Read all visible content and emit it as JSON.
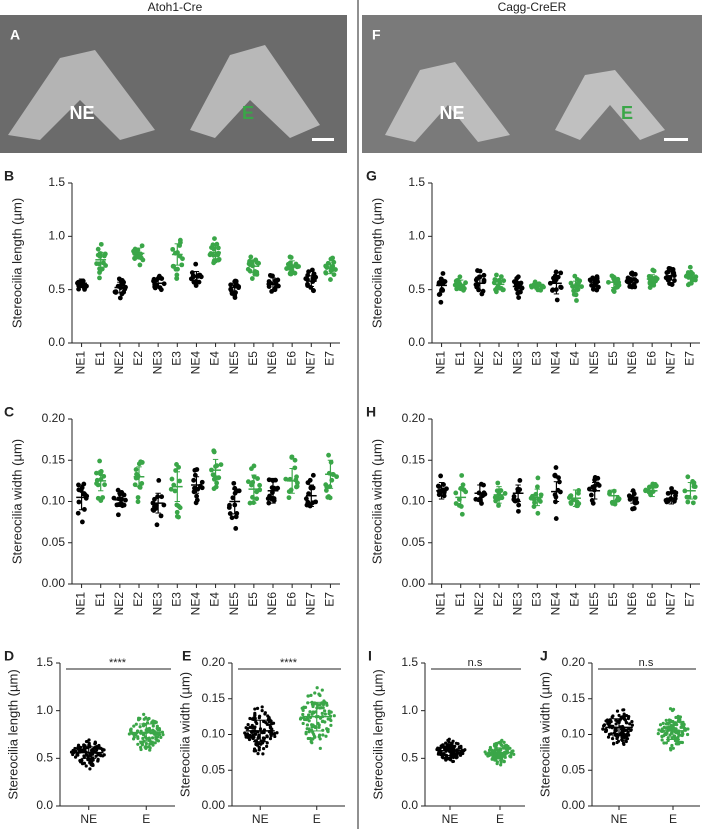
{
  "headers": [
    "Atoh1-Cre",
    "Cagg-CreER"
  ],
  "images": [
    {
      "letter": "A",
      "labels": [
        "NE",
        "E"
      ]
    },
    {
      "letter": "F",
      "labels": [
        "NE",
        "E"
      ]
    }
  ],
  "chart_data": [
    {
      "type": "dot",
      "panel": "B",
      "ylabel": "Stereocilia length (µm)",
      "categories": [
        "NE1",
        "E1",
        "NE2",
        "E2",
        "NE3",
        "E3",
        "NE4",
        "E4",
        "NE5",
        "E5",
        "NE6",
        "E6",
        "NE7",
        "E7"
      ],
      "values": [
        0.56,
        0.78,
        0.52,
        0.84,
        0.56,
        0.83,
        0.62,
        0.85,
        0.52,
        0.72,
        0.55,
        0.72,
        0.58,
        0.7
      ],
      "errors": [
        0.04,
        0.07,
        0.05,
        0.05,
        0.04,
        0.1,
        0.05,
        0.06,
        0.04,
        0.06,
        0.06,
        0.05,
        0.05,
        0.05
      ],
      "colors": [
        "#000000",
        "#3aa648",
        "#000000",
        "#3aa648",
        "#000000",
        "#3aa648",
        "#000000",
        "#3aa648",
        "#000000",
        "#3aa648",
        "#000000",
        "#3aa648",
        "#000000",
        "#3aa648"
      ],
      "ylim": [
        0,
        1.5
      ],
      "yticks": [
        {
          "value": 0,
          "label": "0.0"
        },
        {
          "value": 0.5,
          "label": "0.5"
        },
        {
          "value": 1,
          "label": "1.0"
        },
        {
          "value": 1.5,
          "label": "1.5"
        }
      ]
    },
    {
      "type": "dot",
      "panel": "C",
      "ylabel": "Stereocilia width (µm)",
      "categories": [
        "NE1",
        "E1",
        "NE2",
        "E2",
        "NE3",
        "E3",
        "NE4",
        "E4",
        "NE5",
        "E5",
        "NE6",
        "E6",
        "NE7",
        "E7"
      ],
      "values": [
        0.105,
        0.125,
        0.102,
        0.13,
        0.098,
        0.118,
        0.12,
        0.138,
        0.1,
        0.115,
        0.113,
        0.125,
        0.107,
        0.133
      ],
      "errors": [
        0.015,
        0.012,
        0.008,
        0.012,
        0.012,
        0.018,
        0.01,
        0.013,
        0.015,
        0.017,
        0.015,
        0.015,
        0.013,
        0.017
      ],
      "colors": [
        "#000000",
        "#3aa648",
        "#000000",
        "#3aa648",
        "#000000",
        "#3aa648",
        "#000000",
        "#3aa648",
        "#000000",
        "#3aa648",
        "#000000",
        "#3aa648",
        "#000000",
        "#3aa648"
      ],
      "ylim": [
        0,
        0.2
      ],
      "yticks": [
        {
          "value": 0,
          "label": "0.00"
        },
        {
          "value": 0.05,
          "label": "0.05"
        },
        {
          "value": 0.1,
          "label": "0.10"
        },
        {
          "value": 0.15,
          "label": "0.15"
        },
        {
          "value": 0.2,
          "label": "0.20"
        }
      ]
    },
    {
      "type": "dot",
      "panel": "G",
      "ylabel": "Stereocilia length (µm)",
      "categories": [
        "NE1",
        "E1",
        "NE2",
        "E2",
        "NE3",
        "E3",
        "NE4",
        "E4",
        "NE5",
        "E5",
        "NE6",
        "E6",
        "NE7",
        "E7"
      ],
      "values": [
        0.54,
        0.55,
        0.56,
        0.55,
        0.53,
        0.53,
        0.56,
        0.53,
        0.57,
        0.57,
        0.59,
        0.6,
        0.63,
        0.62
      ],
      "errors": [
        0.06,
        0.04,
        0.07,
        0.05,
        0.04,
        0.03,
        0.1,
        0.05,
        0.04,
        0.05,
        0.04,
        0.04,
        0.04,
        0.05
      ],
      "colors": [
        "#000000",
        "#3aa648",
        "#000000",
        "#3aa648",
        "#000000",
        "#3aa648",
        "#000000",
        "#3aa648",
        "#000000",
        "#3aa648",
        "#000000",
        "#3aa648",
        "#000000",
        "#3aa648"
      ],
      "ylim": [
        0,
        1.5
      ],
      "yticks": [
        {
          "value": 0,
          "label": "0.0"
        },
        {
          "value": 0.5,
          "label": "0.5"
        },
        {
          "value": 1,
          "label": "1.0"
        },
        {
          "value": 1.5,
          "label": "1.5"
        }
      ]
    },
    {
      "type": "dot",
      "panel": "H",
      "ylabel": "Stereocilia width (µm)",
      "categories": [
        "NE1",
        "E1",
        "NE2",
        "E2",
        "NE3",
        "E3",
        "NE4",
        "E4",
        "NE5",
        "E5",
        "NE6",
        "E6",
        "NE7",
        "E7"
      ],
      "values": [
        0.113,
        0.105,
        0.11,
        0.108,
        0.11,
        0.105,
        0.112,
        0.104,
        0.113,
        0.107,
        0.105,
        0.113,
        0.104,
        0.113
      ],
      "errors": [
        0.01,
        0.01,
        0.01,
        0.01,
        0.01,
        0.01,
        0.012,
        0.01,
        0.01,
        0.007,
        0.007,
        0.007,
        0.007,
        0.01
      ],
      "colors": [
        "#000000",
        "#3aa648",
        "#000000",
        "#3aa648",
        "#000000",
        "#3aa648",
        "#000000",
        "#3aa648",
        "#000000",
        "#3aa648",
        "#000000",
        "#3aa648",
        "#000000",
        "#3aa648"
      ],
      "ylim": [
        0,
        0.2
      ],
      "yticks": [
        {
          "value": 0,
          "label": "0.00"
        },
        {
          "value": 0.05,
          "label": "0.05"
        },
        {
          "value": 0.1,
          "label": "0.10"
        },
        {
          "value": 0.15,
          "label": "0.15"
        },
        {
          "value": 0.2,
          "label": "0.20"
        }
      ]
    },
    {
      "type": "dot",
      "panel": "D",
      "ylabel": "Stereocilia length (µm)",
      "significance": "****",
      "categories": [
        "NE",
        "E"
      ],
      "values": [
        0.56,
        0.77
      ],
      "errors": [
        0.06,
        0.09
      ],
      "colors": [
        "#000000",
        "#3aa648"
      ],
      "ylim": [
        0,
        1.5
      ],
      "yticks": [
        {
          "value": 0,
          "label": "0.0"
        },
        {
          "value": 0.5,
          "label": "0.5"
        },
        {
          "value": 1,
          "label": "1.0"
        },
        {
          "value": 1.5,
          "label": "1.5"
        }
      ]
    },
    {
      "type": "dot",
      "panel": "E",
      "ylabel": "Stereocilia width (µm)",
      "significance": "****",
      "categories": [
        "NE",
        "E"
      ],
      "values": [
        0.105,
        0.125
      ],
      "errors": [
        0.015,
        0.02
      ],
      "colors": [
        "#000000",
        "#3aa648"
      ],
      "ylim": [
        0,
        0.2
      ],
      "yticks": [
        {
          "value": 0,
          "label": "0.00"
        },
        {
          "value": 0.05,
          "label": "0.05"
        },
        {
          "value": 0.1,
          "label": "0.10"
        },
        {
          "value": 0.15,
          "label": "0.15"
        },
        {
          "value": 0.2,
          "label": "0.20"
        }
      ]
    },
    {
      "type": "dot",
      "panel": "I",
      "ylabel": "Stereocilia length (µm)",
      "significance": "n.s",
      "categories": [
        "NE",
        "E"
      ],
      "values": [
        0.58,
        0.56
      ],
      "errors": [
        0.05,
        0.05
      ],
      "colors": [
        "#000000",
        "#3aa648"
      ],
      "ylim": [
        0,
        1.5
      ],
      "yticks": [
        {
          "value": 0,
          "label": "0.0"
        },
        {
          "value": 0.5,
          "label": "0.5"
        },
        {
          "value": 1,
          "label": "1.0"
        },
        {
          "value": 1.5,
          "label": "1.5"
        }
      ]
    },
    {
      "type": "dot",
      "panel": "J",
      "ylabel": "Stereocilia width (µm)",
      "significance": "n.s",
      "categories": [
        "NE",
        "E"
      ],
      "values": [
        0.11,
        0.105
      ],
      "errors": [
        0.012,
        0.012
      ],
      "colors": [
        "#000000",
        "#3aa648"
      ],
      "ylim": [
        0,
        0.2
      ],
      "yticks": [
        {
          "value": 0,
          "label": "0.00"
        },
        {
          "value": 0.05,
          "label": "0.05"
        },
        {
          "value": 0.1,
          "label": "0.10"
        },
        {
          "value": 0.15,
          "label": "0.15"
        },
        {
          "value": 0.2,
          "label": "0.20"
        }
      ]
    }
  ]
}
